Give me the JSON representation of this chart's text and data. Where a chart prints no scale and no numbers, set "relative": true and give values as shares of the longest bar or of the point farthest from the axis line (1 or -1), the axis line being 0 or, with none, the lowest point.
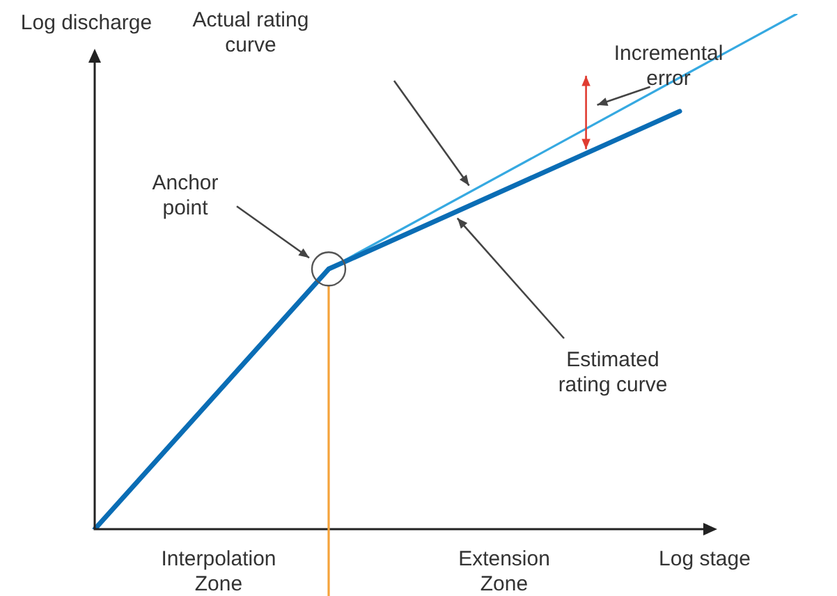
{
  "chart_data": {
    "type": "line",
    "relative": true,
    "xlabel": "Log stage",
    "ylabel": "Log discharge",
    "categories": [
      null,
      null,
      null,
      null,
      null,
      null,
      null
    ],
    "tick_labels": false,
    "legend": false,
    "marker": "none",
    "line_style": "solid",
    "series": [
      {
        "color": "#0a6db5",
        "values": [
          0,
          null,
          0.505,
          null,
          null,
          0.811,
          null
        ]
      },
      {
        "color": "#36a9e1",
        "values": [
          null,
          null,
          0.505,
          null,
          null,
          null,
          1.0
        ]
      }
    ],
    "ref_lines": [
      {
        "axis": "x",
        "color": "#f5a33b"
      }
    ],
    "annotations": [
      "Actual rating curve",
      "Incremental error",
      "Anchor point",
      "Estimated rating curve",
      "Interpolation Zone",
      "Extension Zone"
    ]
  }
}
